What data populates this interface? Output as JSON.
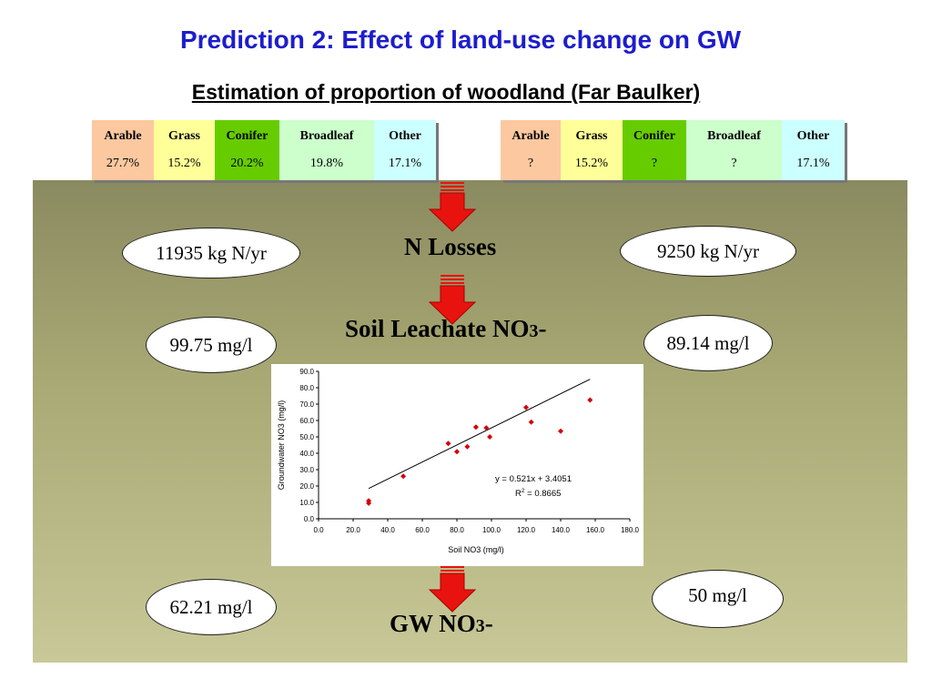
{
  "title": "Prediction 2: Effect of land-use change on GW",
  "subtitle": "Estimation of proportion of woodland (Far Baulker)",
  "left_table": [
    {
      "label": "Arable",
      "value": "27.7%",
      "color": "#fbc8a0"
    },
    {
      "label": "Grass",
      "value": "15.2%",
      "color": "#ffff99"
    },
    {
      "label": "Conifer",
      "value": "20.2%",
      "color": "#66cc00"
    },
    {
      "label": "Broadleaf",
      "value": "19.8%",
      "color": "#ccffcc"
    },
    {
      "label": "Other",
      "value": "17.1%",
      "color": "#ccffff"
    }
  ],
  "right_table": [
    {
      "label": "Arable",
      "value": "?",
      "color": "#fbc8a0"
    },
    {
      "label": "Grass",
      "value": "15.2%",
      "color": "#ffff99"
    },
    {
      "label": "Conifer",
      "value": "?",
      "color": "#66cc00"
    },
    {
      "label": "Broadleaf",
      "value": "?",
      "color": "#ccffcc"
    },
    {
      "label": "Other",
      "value": "17.1%",
      "color": "#ccffff"
    }
  ],
  "stages": {
    "n_losses": "N Losses",
    "soil_leachate": "Soil Leachate NO",
    "soil_leachate_sub": "3",
    "soil_leachate_suffix": "-",
    "gw": "GW NO",
    "gw_sub": "3",
    "gw_suffix": "-"
  },
  "values": {
    "left_n_losses": "11935 kg N/yr",
    "right_n_losses": "9250 kg N/yr",
    "left_soil": "99.75 mg/l",
    "right_soil": "89.14 mg/l",
    "left_gw": "62.21 mg/l",
    "right_gw": "50 mg/l"
  },
  "arrow_color": "#e8130e",
  "chart_data": {
    "type": "scatter",
    "xlabel": "Soil NO3 (mg/l)",
    "ylabel": "Groundwater NO3 (mg/l)",
    "xlim": [
      0,
      180
    ],
    "ylim": [
      0,
      90
    ],
    "xticks": [
      "0.0",
      "20.0",
      "40.0",
      "60.0",
      "80.0",
      "100.0",
      "120.0",
      "140.0",
      "160.0",
      "180.0"
    ],
    "yticks": [
      "0.0",
      "10.0",
      "20.0",
      "30.0",
      "40.0",
      "50.0",
      "60.0",
      "70.0",
      "80.0",
      "90.0"
    ],
    "points": [
      {
        "x": 29,
        "y": 9.5
      },
      {
        "x": 29,
        "y": 11
      },
      {
        "x": 49,
        "y": 26
      },
      {
        "x": 75,
        "y": 46
      },
      {
        "x": 80,
        "y": 41
      },
      {
        "x": 86,
        "y": 44
      },
      {
        "x": 91,
        "y": 56
      },
      {
        "x": 97,
        "y": 55.5
      },
      {
        "x": 99,
        "y": 50
      },
      {
        "x": 120,
        "y": 68
      },
      {
        "x": 123,
        "y": 59
      },
      {
        "x": 140,
        "y": 53.5
      },
      {
        "x": 157,
        "y": 72.5
      }
    ],
    "trendline": {
      "slope": 0.521,
      "intercept": 3.4051,
      "x_range": [
        29,
        157
      ]
    },
    "equation": "y = 0.521x + 3.4051",
    "r2_label": "R",
    "r2_value": " = 0.8665",
    "point_color": "#d40000"
  }
}
